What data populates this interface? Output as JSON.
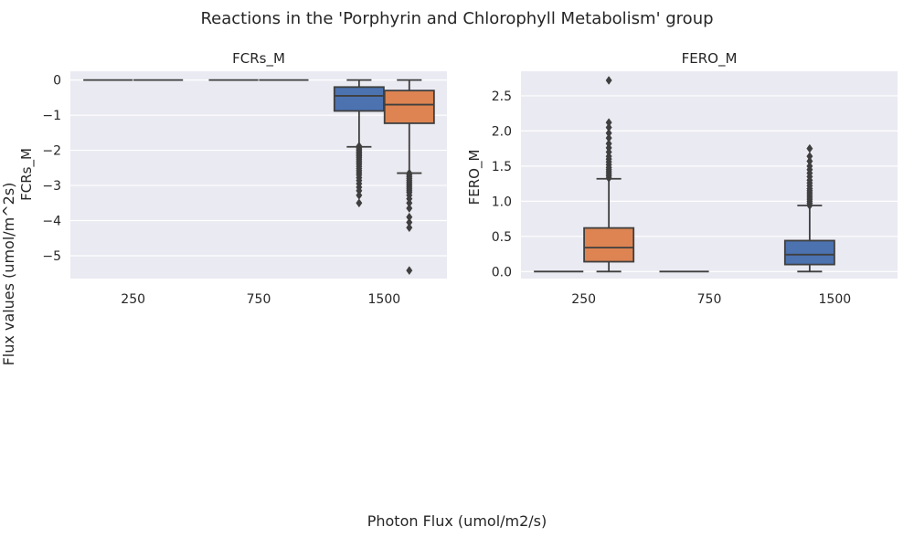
{
  "figure": {
    "title": "Reactions in the 'Porphyrin and Chlorophyll Metabolism' group",
    "xlabel": "Photon Flux (umol/m2/s)",
    "ylabel": "Flux values (umol/m^2s)"
  },
  "colors": {
    "background": "#eaeaf2",
    "grid": "#ffffff",
    "line": "#3f3f3f",
    "series_a": "#4c72b0",
    "series_b": "#dd8452"
  },
  "chart_data": [
    {
      "type": "box",
      "title": "FCRs_M",
      "ylabel": "FCRs_M",
      "categories": [
        "250",
        "750",
        "1500"
      ],
      "ylim": [
        -5.65,
        0.25
      ],
      "yticks": [
        0,
        -1,
        -2,
        -3,
        -4,
        -5
      ],
      "yticklabels": [
        "0",
        "−1",
        "−2",
        "−3",
        "−4",
        "−5"
      ],
      "grid": true,
      "series": [
        {
          "boxes": [
            {
              "q1": 0,
              "median": 0,
              "q3": 0,
              "whislo": 0,
              "whishi": 0,
              "fliers": []
            },
            {
              "q1": 0,
              "median": 0,
              "q3": 0,
              "whislo": 0,
              "whishi": 0,
              "fliers": []
            },
            {
              "q1": -0.88,
              "median": -0.45,
              "q3": -0.2,
              "whislo": -1.9,
              "whishi": 0,
              "fliers": [
                -1.88,
                -1.92,
                -1.96,
                -2.0,
                -2.04,
                -2.08,
                -2.12,
                -2.16,
                -2.2,
                -2.25,
                -2.3,
                -2.35,
                -2.4,
                -2.46,
                -2.52,
                -2.58,
                -2.64,
                -2.7,
                -2.78,
                -2.86,
                -2.95,
                -3.05,
                -3.15,
                -3.28,
                -3.5
              ]
            }
          ]
        },
        {
          "boxes": [
            {
              "q1": 0,
              "median": 0,
              "q3": 0,
              "whislo": 0,
              "whishi": 0,
              "fliers": []
            },
            {
              "q1": 0,
              "median": 0,
              "q3": 0,
              "whislo": 0,
              "whishi": 0,
              "fliers": []
            },
            {
              "q1": -1.23,
              "median": -0.7,
              "q3": -0.3,
              "whislo": -2.65,
              "whishi": 0,
              "fliers": [
                -2.65,
                -2.7,
                -2.75,
                -2.8,
                -2.85,
                -2.9,
                -2.95,
                -3.0,
                -3.05,
                -3.1,
                -3.15,
                -3.2,
                -3.28,
                -3.38,
                -3.5,
                -3.65,
                -3.9,
                -4.05,
                -4.2,
                -5.42
              ]
            }
          ]
        }
      ]
    },
    {
      "type": "box",
      "title": "FERO_M",
      "ylabel": "FERO_M",
      "categories": [
        "250",
        "750",
        "1500"
      ],
      "ylim": [
        -0.1,
        2.85
      ],
      "yticks": [
        0,
        0.5,
        1.0,
        1.5,
        2.0,
        2.5
      ],
      "yticklabels": [
        "0.0",
        "0.5",
        "1.0",
        "1.5",
        "2.0",
        "2.5"
      ],
      "grid": true,
      "series": [
        {
          "boxes": [
            {
              "q1": 0,
              "median": 0,
              "q3": 0,
              "whislo": 0,
              "whishi": 0,
              "fliers": []
            },
            {
              "q1": 0,
              "median": 0,
              "q3": 0,
              "whislo": 0,
              "whishi": 0,
              "fliers": []
            },
            {
              "q1": 0.1,
              "median": 0.24,
              "q3": 0.44,
              "whislo": 0.0,
              "whishi": 0.94,
              "fliers": [
                0.94,
                0.97,
                1.0,
                1.03,
                1.06,
                1.09,
                1.12,
                1.15,
                1.18,
                1.22,
                1.26,
                1.3,
                1.35,
                1.4,
                1.45,
                1.5,
                1.57,
                1.64,
                1.75
              ]
            }
          ]
        },
        {
          "boxes": [
            {
              "q1": 0.14,
              "median": 0.34,
              "q3": 0.62,
              "whislo": 0.0,
              "whishi": 1.32,
              "fliers": [
                1.33,
                1.36,
                1.39,
                1.42,
                1.45,
                1.48,
                1.52,
                1.56,
                1.6,
                1.64,
                1.7,
                1.76,
                1.82,
                1.9,
                1.97,
                2.05,
                2.12,
                2.72
              ]
            }
          ]
        }
      ]
    }
  ]
}
